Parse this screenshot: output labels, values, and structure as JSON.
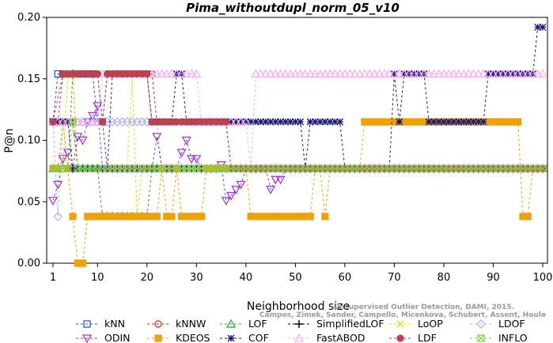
{
  "chart_data": {
    "type": "line",
    "title": "Pima_withoutdupl_norm_05_v10",
    "xlabel": "Neighborhood size",
    "ylabel": "P@n",
    "xlim": [
      1,
      100
    ],
    "ylim": [
      0,
      0.2
    ],
    "xticks": [
      1,
      10,
      20,
      30,
      40,
      50,
      60,
      70,
      80,
      90,
      100
    ],
    "yticks": [
      0.0,
      0.05,
      0.1,
      0.15,
      0.2
    ],
    "ytick_labels": [
      "0.00",
      "0.05",
      "0.10",
      "0.15",
      "0.20"
    ],
    "grid": false,
    "legend_position": "bottom",
    "credit_lines": [
      "Campos, Zimek, Sander, Campello, Micenkova, Schubert, Assent, Houle",
      "Unsupervised Outlier Detection, DAMI, 2015."
    ],
    "series": [
      {
        "name": "kNN",
        "color": "#1f4fb4",
        "marker": "square",
        "segments": [
          [
            1,
            0.115
          ],
          [
            2,
            0.154
          ],
          [
            3,
            0.154
          ],
          [
            4,
            0.154
          ],
          [
            9,
            0.154
          ],
          [
            10,
            0.115
          ],
          [
            11,
            0.115
          ],
          [
            12,
            0.077
          ],
          [
            100,
            0.077
          ]
        ]
      },
      {
        "name": "kNNW",
        "color": "#d62728",
        "marker": "circle",
        "segments": [
          [
            1,
            0.115
          ],
          [
            2,
            0.115
          ],
          [
            3,
            0.154
          ],
          [
            4,
            0.154
          ],
          [
            10,
            0.154
          ],
          [
            11,
            0.115
          ],
          [
            12,
            0.154
          ],
          [
            21,
            0.154
          ],
          [
            22,
            0.115
          ],
          [
            36,
            0.115
          ],
          [
            37,
            0.077
          ],
          [
            100,
            0.077
          ]
        ]
      },
      {
        "name": "LOF",
        "color": "#2ca02c",
        "marker": "triangle-up",
        "segments": [
          [
            1,
            0.077
          ],
          [
            4,
            0.077
          ],
          [
            5,
            0.154
          ],
          [
            6,
            0.077
          ],
          [
            10,
            0.077
          ],
          [
            11,
            0.038
          ],
          [
            20,
            0.038
          ],
          [
            21,
            0.077
          ],
          [
            100,
            0.077
          ]
        ]
      },
      {
        "name": "SimplifiedLOF",
        "color": "#000000",
        "marker": "plus",
        "segments": [
          [
            1,
            0.115
          ],
          [
            5,
            0.115
          ],
          [
            6,
            0.077
          ],
          [
            100,
            0.077
          ]
        ]
      },
      {
        "name": "LoOP",
        "color": "#e8d800",
        "marker": "x",
        "segments": [
          [
            1,
            0.077
          ],
          [
            3,
            0.077
          ],
          [
            4,
            0.154
          ],
          [
            5,
            0.154
          ],
          [
            6,
            0.077
          ],
          [
            16,
            0.077
          ],
          [
            17,
            0.154
          ],
          [
            18,
            0.038
          ],
          [
            19,
            0.077
          ],
          [
            100,
            0.077
          ]
        ]
      },
      {
        "name": "LDOF",
        "color": "#b0b0f0",
        "marker": "diamond",
        "segments": [
          [
            1,
            0.115
          ],
          [
            2,
            0.038
          ],
          [
            3,
            0.115
          ],
          [
            22,
            0.115
          ],
          [
            23,
            0.077
          ],
          [
            100,
            0.077
          ]
        ]
      },
      {
        "name": "ODIN",
        "color": "#9b30d9",
        "marker": "triangle-down",
        "segments": [
          [
            1,
            0.051
          ],
          [
            2,
            0.064
          ],
          [
            3,
            0.085
          ],
          [
            4,
            0.09
          ],
          [
            5,
            0.077
          ],
          [
            6,
            0.103
          ],
          [
            7,
            0.1
          ],
          [
            8,
            0.115
          ],
          [
            9,
            0.12
          ],
          [
            10,
            0.128
          ],
          [
            11,
            0.077
          ],
          [
            21,
            0.077
          ],
          [
            22,
            0.103
          ],
          [
            23,
            0.077
          ],
          [
            26,
            0.077
          ],
          [
            27,
            0.09
          ],
          [
            28,
            0.1
          ],
          [
            29,
            0.085
          ],
          [
            30,
            0.085
          ],
          [
            31,
            0.077
          ],
          [
            34,
            0.077
          ],
          [
            35,
            0.08
          ],
          [
            36,
            0.051
          ],
          [
            37,
            0.055
          ],
          [
            38,
            0.06
          ],
          [
            39,
            0.064
          ],
          [
            40,
            0.077
          ],
          [
            44,
            0.077
          ],
          [
            45,
            0.06
          ],
          [
            46,
            0.068
          ],
          [
            47,
            0.068
          ],
          [
            48,
            0.077
          ],
          [
            100,
            0.077
          ]
        ]
      },
      {
        "name": "KDEOS",
        "color": "#f0a000",
        "marker": "square-filled",
        "segments": [
          [
            1,
            0.077
          ],
          [
            2,
            0.077
          ],
          [
            3,
            0.115
          ],
          [
            4,
            0.077
          ],
          [
            5,
            0.038
          ],
          [
            6,
            0
          ],
          [
            7,
            0
          ],
          [
            8,
            0.038
          ],
          [
            10,
            0.038
          ],
          [
            11,
            0.038
          ],
          [
            22,
            0.038
          ],
          [
            23,
            0.077
          ],
          [
            24,
            0.038
          ],
          [
            25,
            0.038
          ],
          [
            26,
            0.077
          ],
          [
            27,
            0.038
          ],
          [
            31,
            0.038
          ],
          [
            32,
            0.077
          ],
          [
            40,
            0.077
          ],
          [
            41,
            0.038
          ],
          [
            53,
            0.038
          ],
          [
            54,
            0.077
          ],
          [
            55,
            0.077
          ],
          [
            56,
            0.038
          ],
          [
            57,
            0.077
          ],
          [
            63,
            0.077
          ],
          [
            64,
            0.115
          ],
          [
            95,
            0.115
          ],
          [
            96,
            0.038
          ],
          [
            97,
            0.038
          ],
          [
            98,
            0.077
          ],
          [
            100,
            0.077
          ]
        ]
      },
      {
        "name": "COF",
        "color": "#1a1a80",
        "marker": "asterisk",
        "segments": [
          [
            1,
            0.115
          ],
          [
            4,
            0.115
          ],
          [
            5,
            0.077
          ],
          [
            12,
            0.077
          ],
          [
            13,
            0.154
          ],
          [
            20,
            0.154
          ],
          [
            21,
            0.115
          ],
          [
            25,
            0.115
          ],
          [
            26,
            0.154
          ],
          [
            27,
            0.154
          ],
          [
            28,
            0.115
          ],
          [
            51,
            0.115
          ],
          [
            52,
            0.077
          ],
          [
            53,
            0.115
          ],
          [
            59,
            0.115
          ],
          [
            60,
            0.077
          ],
          [
            69,
            0.077
          ],
          [
            70,
            0.154
          ],
          [
            71,
            0.115
          ],
          [
            72,
            0.154
          ],
          [
            76,
            0.154
          ],
          [
            77,
            0.115
          ],
          [
            88,
            0.115
          ],
          [
            89,
            0.154
          ],
          [
            98,
            0.154
          ],
          [
            99,
            0.192
          ],
          [
            100,
            0.192
          ]
        ]
      },
      {
        "name": "FastABOD",
        "color": "#f5b0f0",
        "marker": "triangle-up-open",
        "segments": [
          [
            1,
            0.115
          ],
          [
            2,
            0.115
          ],
          [
            3,
            0.115
          ],
          [
            10,
            0.115
          ],
          [
            11,
            0.154
          ],
          [
            30,
            0.154
          ],
          [
            31,
            0.115
          ],
          [
            40,
            0.115
          ],
          [
            41,
            0.077
          ],
          [
            42,
            0.154
          ],
          [
            100,
            0.154
          ]
        ]
      },
      {
        "name": "LDF",
        "color": "#c04050",
        "marker": "circle-filled",
        "segments": [
          [
            1,
            0.115
          ],
          [
            3,
            0.154
          ],
          [
            10,
            0.154
          ],
          [
            11,
            0.115
          ],
          [
            12,
            0.154
          ],
          [
            20,
            0.154
          ],
          [
            21,
            0.115
          ],
          [
            36,
            0.115
          ],
          [
            37,
            0.077
          ],
          [
            100,
            0.077
          ]
        ]
      },
      {
        "name": "INFLO",
        "color": "#80d040",
        "marker": "boxx",
        "segments": [
          [
            1,
            0.077
          ],
          [
            4,
            0.077
          ],
          [
            5,
            0.115
          ],
          [
            6,
            0.077
          ],
          [
            100,
            0.077
          ]
        ]
      }
    ]
  }
}
